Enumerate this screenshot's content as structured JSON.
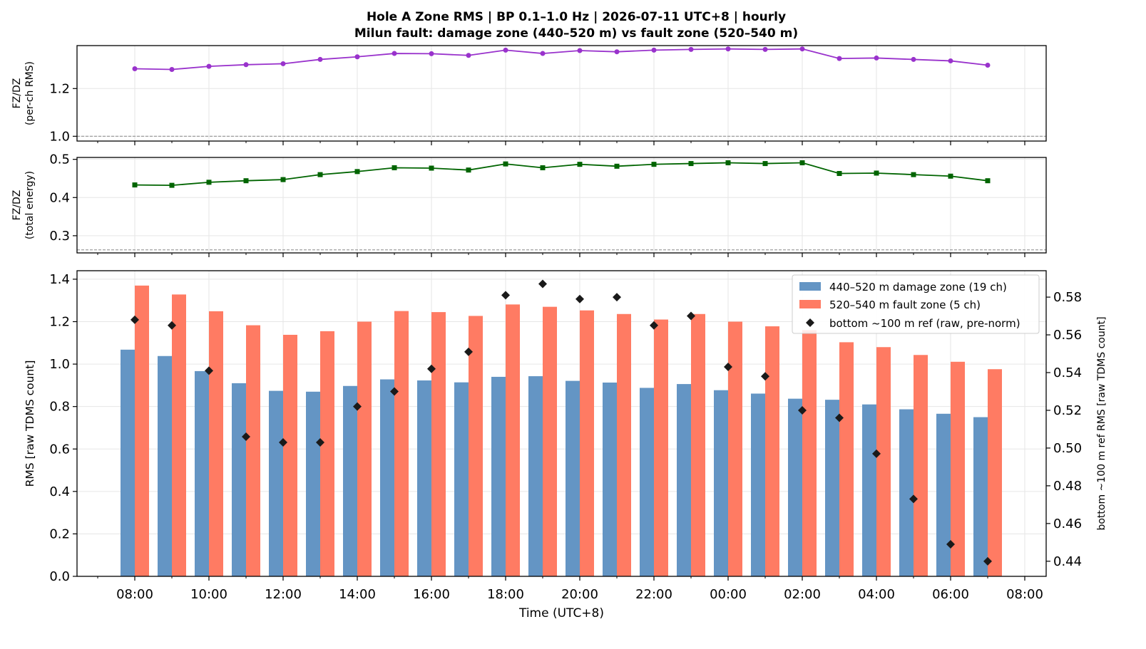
{
  "chart_data": {
    "type": "bar",
    "title_line1": "Hole A Zone RMS  |  BP 0.1–1.0 Hz  |  2026-07-11 UTC+8  |  hourly",
    "title_line2": "Milun fault: damage zone (440–520 m) vs fault zone (520–540 m)",
    "xlabel": "Time (UTC+8)",
    "x_tick_labels": [
      "08:00",
      "10:00",
      "12:00",
      "14:00",
      "16:00",
      "18:00",
      "20:00",
      "22:00",
      "00:00",
      "02:00",
      "04:00",
      "06:00",
      "08:00"
    ],
    "hours": [
      "08:00",
      "09:00",
      "10:00",
      "11:00",
      "12:00",
      "13:00",
      "14:00",
      "15:00",
      "16:00",
      "17:00",
      "18:00",
      "19:00",
      "20:00",
      "21:00",
      "22:00",
      "23:00",
      "00:00",
      "01:00",
      "02:00",
      "03:00",
      "04:00",
      "05:00",
      "06:00",
      "07:00"
    ],
    "panels": [
      {
        "ylabel_line1": "FZ/DZ",
        "ylabel_line2": "(per-ch RMS)",
        "ylim": [
          0.98,
          1.38
        ],
        "yticks": [
          1.0,
          1.2
        ],
        "ytick_labels": [
          "1.0",
          "1.2"
        ],
        "ref_line": 1.0,
        "color": "#9932CC",
        "marker": "circle",
        "values": [
          1.283,
          1.28,
          1.293,
          1.3,
          1.304,
          1.322,
          1.333,
          1.347,
          1.346,
          1.339,
          1.361,
          1.347,
          1.359,
          1.354,
          1.361,
          1.364,
          1.366,
          1.364,
          1.366,
          1.326,
          1.328,
          1.322,
          1.316,
          1.298
        ]
      },
      {
        "ylabel_line1": "FZ/DZ",
        "ylabel_line2": "(total energy)",
        "ylim": [
          0.255,
          0.505
        ],
        "yticks": [
          0.3,
          0.4,
          0.5
        ],
        "ytick_labels": [
          "0.3",
          "0.4",
          "0.5"
        ],
        "ref_line": 0.263,
        "color": "#006400",
        "marker": "square",
        "values": [
          0.433,
          0.432,
          0.44,
          0.444,
          0.447,
          0.46,
          0.468,
          0.478,
          0.477,
          0.472,
          0.488,
          0.478,
          0.487,
          0.482,
          0.487,
          0.489,
          0.491,
          0.489,
          0.491,
          0.463,
          0.464,
          0.46,
          0.456,
          0.444
        ]
      }
    ],
    "main": {
      "ylabel": "RMS  [raw TDMS count]",
      "ylim": [
        0,
        1.44
      ],
      "yticks": [
        0.0,
        0.2,
        0.4,
        0.6,
        0.8,
        1.0,
        1.2,
        1.4
      ],
      "ytick_labels": [
        "0.0",
        "0.2",
        "0.4",
        "0.6",
        "0.8",
        "1.0",
        "1.2",
        "1.4"
      ],
      "ylabel_right": "bottom ~100 m ref RMS  [raw TDMS count]",
      "ylim_right": [
        0.432,
        0.594
      ],
      "yticks_right": [
        0.44,
        0.46,
        0.48,
        0.5,
        0.52,
        0.54,
        0.56,
        0.58
      ],
      "ytick_labels_right": [
        "0.44",
        "0.46",
        "0.48",
        "0.50",
        "0.52",
        "0.54",
        "0.56",
        "0.58"
      ],
      "series": [
        {
          "name": "440–520 m  damage zone (19 ch)",
          "type": "bar",
          "color": "#6495C4",
          "values": [
            1.068,
            1.038,
            0.967,
            0.91,
            0.874,
            0.87,
            0.897,
            0.928,
            0.923,
            0.914,
            0.94,
            0.943,
            0.921,
            0.913,
            0.888,
            0.906,
            0.877,
            0.861,
            0.837,
            0.832,
            0.81,
            0.787,
            0.766,
            0.75
          ]
        },
        {
          "name": "520–540 m  fault zone (5 ch)",
          "type": "bar",
          "color": "#FF7B63",
          "values": [
            1.37,
            1.328,
            1.249,
            1.183,
            1.138,
            1.155,
            1.2,
            1.25,
            1.245,
            1.227,
            1.281,
            1.27,
            1.253,
            1.236,
            1.21,
            1.236,
            1.2,
            1.178,
            1.16,
            1.103,
            1.08,
            1.043,
            1.011,
            0.976
          ]
        },
        {
          "name": "bottom ~100 m ref (raw, pre-norm)",
          "type": "scatter",
          "marker": "diamond",
          "color": "#1a1a1a",
          "axis": "right",
          "values": [
            0.568,
            0.565,
            0.541,
            0.506,
            0.503,
            0.503,
            0.522,
            0.53,
            0.542,
            0.551,
            0.581,
            0.587,
            0.579,
            0.58,
            0.565,
            0.57,
            0.543,
            0.538,
            0.52,
            0.516,
            0.497,
            0.473,
            0.449,
            0.44
          ]
        }
      ],
      "legend_position": "upper right"
    },
    "grid": true
  }
}
